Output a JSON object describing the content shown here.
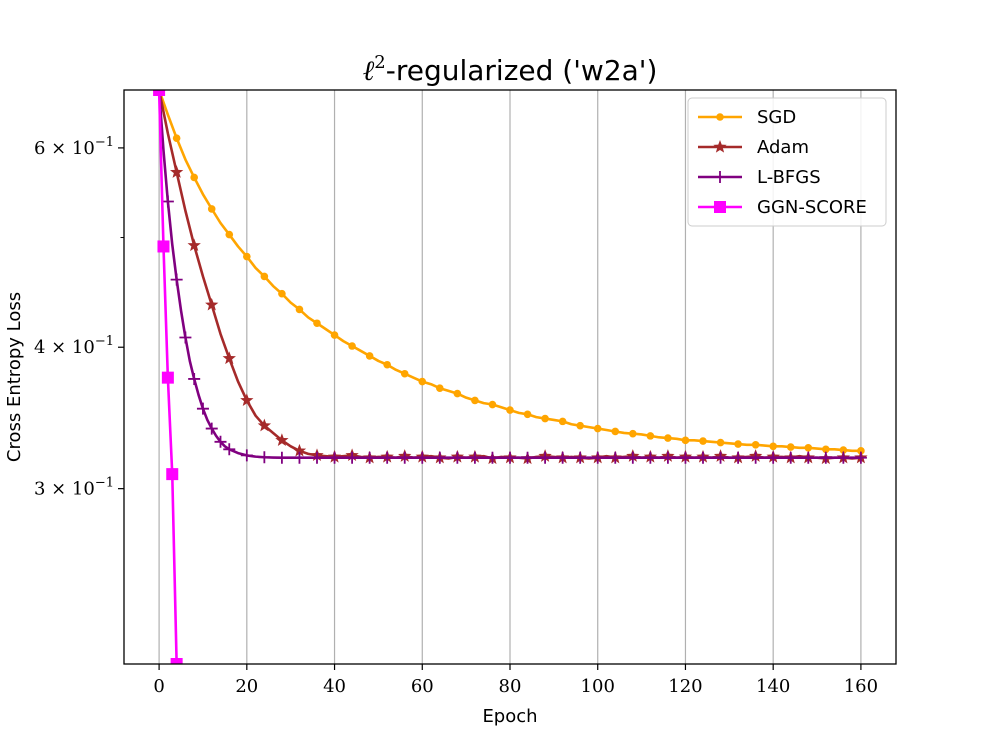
{
  "chart_data": {
    "type": "line",
    "title": "ℓ²-regularized ('w2a')",
    "title_parts": {
      "ell": "ℓ",
      "sup": "2",
      "rest": "-regularized ('w2a')"
    },
    "xlabel": "Epoch",
    "ylabel": "Cross Entropy Loss",
    "xlim": [
      -8,
      168
    ],
    "ylim": [
      0.21,
      0.675
    ],
    "yscale": "log",
    "x_ticks": [
      0,
      20,
      40,
      60,
      80,
      100,
      120,
      140,
      160
    ],
    "x_tick_labels": [
      "0",
      "20",
      "40",
      "60",
      "80",
      "100",
      "120",
      "140",
      "160"
    ],
    "y_ticks": [
      {
        "value": 0.6,
        "label_base": "6 × 10",
        "label_exp": "−1"
      },
      {
        "value": 0.4,
        "label_base": "4 × 10",
        "label_exp": "−1"
      },
      {
        "value": 0.3,
        "label_base": "3 × 10",
        "label_exp": "−1"
      }
    ],
    "y_minor_ticks": [
      0.5
    ],
    "grid": "x-major",
    "legend_position": "top-right",
    "series": [
      {
        "name": "SGD",
        "color": "#ffa500",
        "marker": "circle",
        "marker_every": 2,
        "x": [
          0,
          2,
          4,
          6,
          8,
          10,
          12,
          14,
          16,
          18,
          20,
          22,
          24,
          26,
          28,
          30,
          32,
          34,
          36,
          38,
          40,
          42,
          44,
          46,
          48,
          50,
          52,
          54,
          56,
          58,
          60,
          62,
          64,
          66,
          68,
          70,
          72,
          74,
          76,
          78,
          80,
          82,
          84,
          86,
          88,
          90,
          92,
          94,
          96,
          98,
          100,
          102,
          104,
          106,
          108,
          110,
          112,
          114,
          116,
          118,
          120,
          122,
          124,
          126,
          128,
          130,
          132,
          134,
          136,
          138,
          140,
          142,
          144,
          146,
          148,
          150,
          152,
          154,
          156,
          158,
          160
        ],
        "values": [
          0.675,
          0.642,
          0.612,
          0.586,
          0.565,
          0.546,
          0.53,
          0.515,
          0.503,
          0.491,
          0.481,
          0.47,
          0.462,
          0.453,
          0.446,
          0.438,
          0.432,
          0.425,
          0.42,
          0.415,
          0.41,
          0.405,
          0.401,
          0.397,
          0.393,
          0.389,
          0.386,
          0.382,
          0.379,
          0.376,
          0.373,
          0.371,
          0.368,
          0.366,
          0.364,
          0.361,
          0.359,
          0.357,
          0.356,
          0.354,
          0.352,
          0.35,
          0.349,
          0.347,
          0.346,
          0.345,
          0.344,
          0.342,
          0.341,
          0.34,
          0.339,
          0.338,
          0.337,
          0.336,
          0.3355,
          0.335,
          0.334,
          0.333,
          0.3325,
          0.332,
          0.331,
          0.331,
          0.3305,
          0.33,
          0.3295,
          0.329,
          0.3285,
          0.328,
          0.328,
          0.3275,
          0.327,
          0.327,
          0.3265,
          0.326,
          0.326,
          0.3255,
          0.325,
          0.325,
          0.3245,
          0.324,
          0.324
        ]
      },
      {
        "name": "Adam",
        "color": "#a52a2a",
        "marker": "star",
        "marker_every": 2,
        "x": [
          0,
          2,
          4,
          6,
          8,
          10,
          12,
          14,
          16,
          18,
          20,
          22,
          24,
          26,
          28,
          30,
          32,
          34,
          36,
          38,
          40,
          42,
          44,
          46,
          48,
          50,
          52,
          54,
          56,
          58,
          60,
          62,
          64,
          66,
          68,
          70,
          72,
          74,
          76,
          78,
          80,
          82,
          84,
          86,
          88,
          90,
          92,
          94,
          96,
          98,
          100,
          102,
          104,
          106,
          108,
          110,
          112,
          114,
          116,
          118,
          120,
          122,
          124,
          126,
          128,
          130,
          132,
          134,
          136,
          138,
          140,
          142,
          144,
          146,
          148,
          150,
          152,
          154,
          156,
          158,
          160
        ],
        "values": [
          0.675,
          0.618,
          0.571,
          0.528,
          0.492,
          0.462,
          0.436,
          0.411,
          0.391,
          0.373,
          0.359,
          0.348,
          0.341,
          0.336,
          0.331,
          0.327,
          0.324,
          0.322,
          0.321,
          0.3205,
          0.32,
          0.3205,
          0.321,
          0.32,
          0.3195,
          0.32,
          0.32,
          0.3195,
          0.3205,
          0.3195,
          0.32,
          0.3205,
          0.3195,
          0.319,
          0.32,
          0.3195,
          0.32,
          0.3205,
          0.319,
          0.32,
          0.3195,
          0.3195,
          0.319,
          0.32,
          0.3205,
          0.32,
          0.3195,
          0.32,
          0.3195,
          0.319,
          0.3195,
          0.3205,
          0.3195,
          0.32,
          0.3205,
          0.3195,
          0.32,
          0.3195,
          0.3205,
          0.3195,
          0.32,
          0.3195,
          0.32,
          0.3195,
          0.3205,
          0.3195,
          0.3195,
          0.32,
          0.3205,
          0.3195,
          0.32,
          0.32,
          0.3195,
          0.3205,
          0.3195,
          0.3195,
          0.319,
          0.3195,
          0.3195,
          0.319,
          0.3195
        ]
      },
      {
        "name": "L-BFGS",
        "color": "#800080",
        "marker": "plus",
        "marker_every": 2,
        "x": [
          0,
          1,
          2,
          3,
          4,
          5,
          6,
          7,
          8,
          9,
          10,
          11,
          12,
          13,
          14,
          15,
          16,
          18,
          20,
          22,
          24,
          26,
          28,
          30,
          32,
          34,
          36,
          38,
          40,
          42,
          44,
          46,
          48,
          50,
          52,
          54,
          56,
          58,
          60,
          62,
          64,
          66,
          68,
          70,
          72,
          74,
          76,
          78,
          80,
          82,
          84,
          86,
          88,
          90,
          92,
          94,
          96,
          98,
          100,
          102,
          104,
          106,
          108,
          110,
          112,
          114,
          116,
          118,
          120,
          122,
          124,
          126,
          128,
          130,
          132,
          134,
          136,
          138,
          140,
          142,
          144,
          146,
          148,
          150,
          152,
          154,
          156,
          158,
          160
        ],
        "values": [
          0.675,
          0.597,
          0.538,
          0.493,
          0.459,
          0.431,
          0.408,
          0.389,
          0.375,
          0.363,
          0.353,
          0.345,
          0.339,
          0.334,
          0.33,
          0.327,
          0.325,
          0.3225,
          0.321,
          0.3202,
          0.3198,
          0.3196,
          0.3195,
          0.3195,
          0.3195,
          0.3195,
          0.3195,
          0.3195,
          0.3195,
          0.3195,
          0.3195,
          0.3195,
          0.3195,
          0.3195,
          0.3195,
          0.3195,
          0.3195,
          0.3195,
          0.3195,
          0.3195,
          0.3195,
          0.3195,
          0.3195,
          0.3195,
          0.3195,
          0.3195,
          0.3195,
          0.3195,
          0.3195,
          0.3195,
          0.3195,
          0.3195,
          0.3195,
          0.3195,
          0.3195,
          0.3195,
          0.3195,
          0.3195,
          0.3195,
          0.3195,
          0.3195,
          0.3195,
          0.3195,
          0.3195,
          0.3195,
          0.3195,
          0.3195,
          0.3195,
          0.3195,
          0.3195,
          0.3195,
          0.3195,
          0.3195,
          0.3195,
          0.3195,
          0.3195,
          0.3195,
          0.3195,
          0.3195,
          0.3195,
          0.3195,
          0.3195,
          0.3195,
          0.3195,
          0.3195,
          0.3195,
          0.3195,
          0.3195,
          0.3195
        ]
      },
      {
        "name": "GGN-SCORE",
        "color": "#ff00ff",
        "marker": "square",
        "marker_every": 1,
        "x": [
          0,
          1,
          2,
          3,
          4
        ],
        "values": [
          0.675,
          0.491,
          0.376,
          0.309,
          0.21
        ]
      }
    ]
  }
}
